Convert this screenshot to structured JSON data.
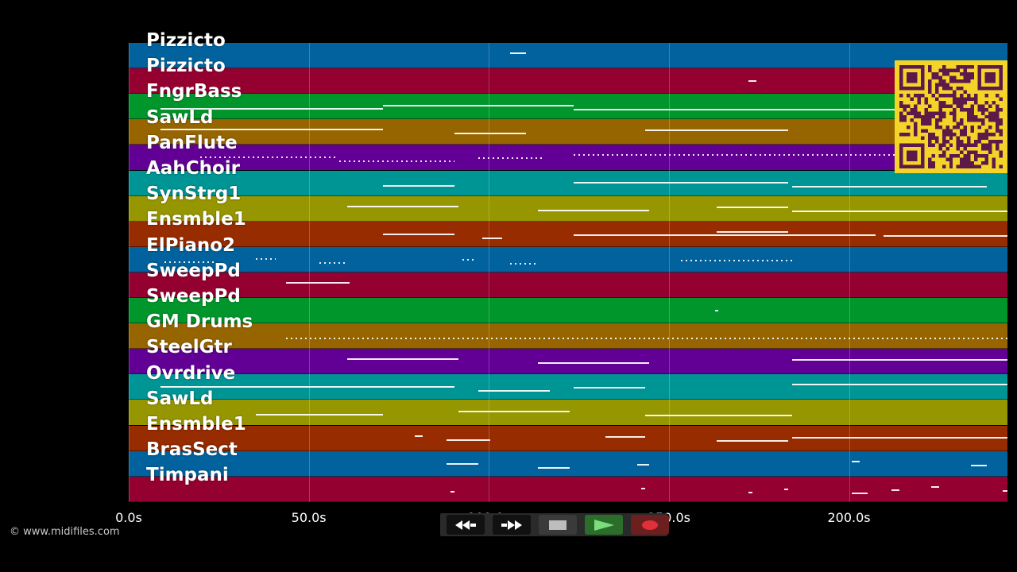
{
  "tracks": [
    {
      "name": "Pizzicto",
      "color": "#01629d"
    },
    {
      "name": "Pizzicto",
      "color": "#940030"
    },
    {
      "name": "FngrBass",
      "color": "#00962b"
    },
    {
      "name": "SawLd",
      "color": "#966500"
    },
    {
      "name": "PanFlute",
      "color": "#620096"
    },
    {
      "name": "AahChoir",
      "color": "#009595"
    },
    {
      "name": "SynStrg1",
      "color": "#969600"
    },
    {
      "name": "Ensmble1",
      "color": "#962c00"
    },
    {
      "name": "ElPiano2",
      "color": "#01629d"
    },
    {
      "name": "SweepPd",
      "color": "#940030"
    },
    {
      "name": "SweepPd",
      "color": "#00962b"
    },
    {
      "name": "GM Drums",
      "color": "#966500"
    },
    {
      "name": "SteelGtr",
      "color": "#620096"
    },
    {
      "name": "Ovrdrive",
      "color": "#009595"
    },
    {
      "name": "SawLd",
      "color": "#969600"
    },
    {
      "name": "Ensmble1",
      "color": "#962c00"
    },
    {
      "name": "BrasSect",
      "color": "#01629d"
    },
    {
      "name": "Timpani",
      "color": "#940030"
    }
  ],
  "timeline": {
    "ticks": [
      "0.0s",
      "50.0s",
      "100.0s",
      "150.0s",
      "200.0s"
    ],
    "tick_values": [
      0,
      50,
      100,
      150,
      200
    ],
    "max_seconds": 244
  },
  "copyright": "© www.midifiles.com",
  "transport": {
    "rewind": "rewind-icon",
    "fast_forward": "fast-forward-icon",
    "stop": "stop-icon",
    "play": "play-icon",
    "record": "record-icon"
  },
  "qr_code": "qr-code"
}
